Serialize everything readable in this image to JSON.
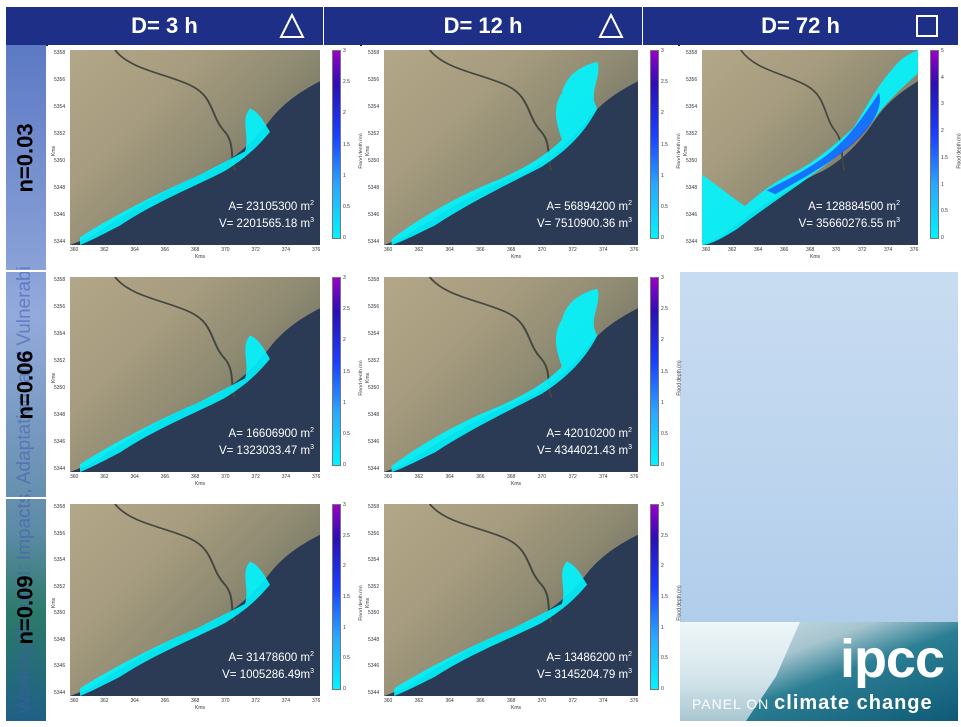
{
  "header": {
    "columns": [
      {
        "label": "D= 3 h",
        "symbol": "triangle"
      },
      {
        "label": "D= 12 h",
        "symbol": "triangle"
      },
      {
        "label": "D= 72 h",
        "symbol": "square"
      }
    ]
  },
  "side_text": "Working Group II: Impacts, Adaptation, and Vulnerabi",
  "rows": [
    "n=0.03",
    "n=0.06",
    "n=0.09"
  ],
  "axes": {
    "y_ticks": [
      "5358",
      "5356",
      "5354",
      "5352",
      "5350",
      "5348",
      "5346",
      "5344"
    ],
    "x_ticks": [
      "360",
      "362",
      "364",
      "366",
      "368",
      "370",
      "372",
      "374",
      "376"
    ],
    "x_label": "Kms",
    "y_label": "Kms",
    "colorbar_label": "Flood depth (m)"
  },
  "panels": [
    {
      "id": "r1c1",
      "colorbar_ticks": [
        "3",
        "2.5",
        "2",
        "1.5",
        "1",
        "0.5",
        "0"
      ],
      "area_prefix": "A= ",
      "area_value": "23105300",
      "area_unit": " m",
      "volume_prefix": "V= ",
      "volume_value": "2201565.18",
      "volume_unit": " m"
    },
    {
      "id": "r1c2",
      "colorbar_ticks": [
        "3",
        "2.5",
        "2",
        "1.5",
        "1",
        "0.5",
        "0"
      ],
      "area_prefix": "A= ",
      "area_value": "56894200",
      "area_unit": " m",
      "volume_prefix": "V= ",
      "volume_value": "7510900.36",
      "volume_unit": " m"
    },
    {
      "id": "r1c3",
      "colorbar_ticks": [
        "5",
        "4",
        "3",
        "2",
        "1.5",
        "1",
        "0.5",
        "0"
      ],
      "area_prefix": "A= ",
      "area_value": "128884500",
      "area_unit": " m",
      "volume_prefix": "V= ",
      "volume_value": "35660276.55",
      "volume_unit": " m"
    },
    {
      "id": "r2c1",
      "colorbar_ticks": [
        "3",
        "2.5",
        "2",
        "1.5",
        "1",
        "0.5",
        "0"
      ],
      "area_prefix": "A= ",
      "area_value": "16606900",
      "area_unit": " m",
      "volume_prefix": "V= ",
      "volume_value": "1323033.47",
      "volume_unit": " m"
    },
    {
      "id": "r2c2",
      "colorbar_ticks": [
        "3",
        "2.5",
        "2",
        "1.5",
        "1",
        "0.5",
        "0"
      ],
      "area_prefix": "A= ",
      "area_value": "42010200",
      "area_unit": " m",
      "volume_prefix": "V= ",
      "volume_value": "4344021.43",
      "volume_unit": " m"
    },
    {
      "id": "r3c1",
      "colorbar_ticks": [
        "3",
        "2.5",
        "2",
        "1.5",
        "1",
        "0.5",
        "0"
      ],
      "area_prefix": "A= ",
      "area_value": "31478600",
      "area_unit": " m",
      "volume_prefix": "V= ",
      "volume_value": "1005286.49",
      "volume_unit": "m"
    },
    {
      "id": "r3c2",
      "colorbar_ticks": [
        "3",
        "2.5",
        "2",
        "1.5",
        "1",
        "0.5",
        "0"
      ],
      "area_prefix": "A= ",
      "area_value": "13486200",
      "area_unit": " m",
      "volume_prefix": "V= ",
      "volume_value": "3145204.79",
      "volume_unit": " m"
    }
  ],
  "logo": {
    "name": "ipcc",
    "tagline_prefix": "PANEL ON ",
    "tagline_main": "climate change"
  },
  "colors": {
    "header_bg": "#1d2f86",
    "flood_shallow": "#00f5ff",
    "flood_deep": "#1a3fff",
    "sea": "#2b3a55"
  }
}
